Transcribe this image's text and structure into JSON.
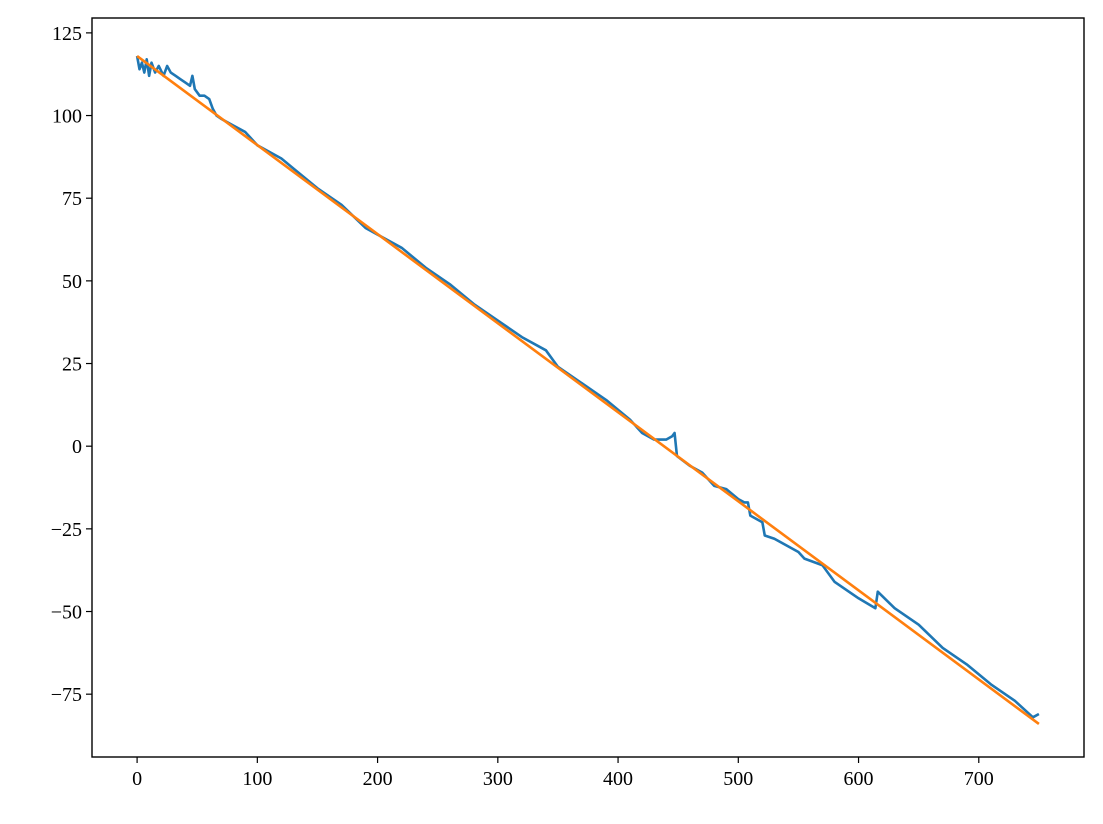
{
  "chart_data": {
    "type": "line",
    "series": [
      {
        "color": "#1f77b4",
        "x": [
          0,
          2,
          4,
          6,
          8,
          10,
          12,
          15,
          18,
          22,
          25,
          28,
          32,
          36,
          40,
          44,
          46,
          48,
          52,
          56,
          60,
          63,
          66,
          70,
          80,
          90,
          100,
          110,
          120,
          130,
          150,
          170,
          190,
          200,
          220,
          240,
          260,
          280,
          300,
          320,
          340,
          350,
          370,
          390,
          410,
          420,
          430,
          440,
          445,
          447,
          449,
          460,
          470,
          480,
          490,
          500,
          505,
          508,
          510,
          520,
          522,
          530,
          540,
          550,
          555,
          570,
          580,
          600,
          614,
          616,
          630,
          650,
          670,
          690,
          710,
          730,
          745,
          750
        ],
        "values": [
          118,
          114,
          116,
          113,
          117,
          112,
          116,
          113,
          115,
          112,
          115,
          113,
          112,
          111,
          110,
          109,
          112,
          108,
          106,
          106,
          105,
          102,
          100,
          99,
          97,
          95,
          91,
          89,
          87,
          84,
          78,
          73,
          66,
          64,
          60,
          54,
          49,
          43,
          38,
          33,
          29,
          24,
          19,
          14,
          8,
          4,
          2,
          2,
          3,
          4,
          -3,
          -6,
          -8,
          -12,
          -13,
          -16,
          -17,
          -17,
          -21,
          -23,
          -27,
          -28,
          -30,
          -32,
          -34,
          -36,
          -41,
          -46,
          -49,
          -44,
          -49,
          -54,
          -61,
          -66,
          -72,
          -77,
          -82,
          -81
        ]
      },
      {
        "color": "#ff7f0e",
        "x": [
          0,
          750
        ],
        "values": [
          118,
          -84
        ]
      }
    ],
    "xlim": [
      -37.5,
      787.5
    ],
    "xticks": [
      0,
      100,
      200,
      300,
      400,
      500,
      600,
      700
    ],
    "ylim": [
      -94,
      129.5
    ],
    "yticks": [
      {
        "value": -75,
        "label": "−75"
      },
      {
        "value": -50,
        "label": "−50"
      },
      {
        "value": -25,
        "label": "−25"
      },
      0,
      25,
      50,
      75,
      100,
      125
    ]
  }
}
